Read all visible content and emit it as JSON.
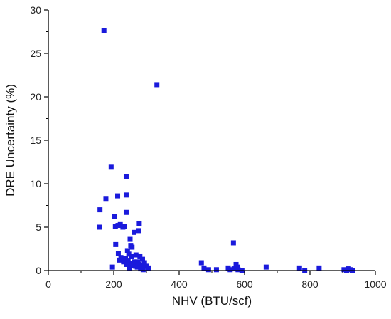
{
  "chart_data": {
    "type": "scatter",
    "xlabel": "NHV (BTU/scf)",
    "ylabel": "DRE Uncertainty (%)",
    "xlim": [
      0,
      1000
    ],
    "ylim": [
      0,
      30
    ],
    "xticks": [
      0,
      200,
      400,
      600,
      800,
      1000
    ],
    "yticks": [
      0,
      5,
      10,
      15,
      20,
      25,
      30
    ],
    "grid": false,
    "marker_color": "#1a1adc",
    "marker": "square",
    "points": [
      [
        170,
        27.6
      ],
      [
        332,
        21.4
      ],
      [
        192,
        11.9
      ],
      [
        238,
        10.8
      ],
      [
        238,
        8.7
      ],
      [
        212,
        8.6
      ],
      [
        176,
        8.3
      ],
      [
        158,
        7.0
      ],
      [
        238,
        6.7
      ],
      [
        202,
        6.2
      ],
      [
        205,
        5.1
      ],
      [
        157,
        5.0
      ],
      [
        220,
        5.3
      ],
      [
        213,
        5.2
      ],
      [
        228,
        5.0
      ],
      [
        232,
        5.1
      ],
      [
        278,
        5.4
      ],
      [
        276,
        4.6
      ],
      [
        262,
        4.4
      ],
      [
        250,
        3.6
      ],
      [
        252,
        2.9
      ],
      [
        256,
        2.7
      ],
      [
        206,
        3.0
      ],
      [
        214,
        2.0
      ],
      [
        222,
        1.5
      ],
      [
        242,
        2.3
      ],
      [
        246,
        1.9
      ],
      [
        254,
        1.6
      ],
      [
        268,
        1.8
      ],
      [
        280,
        1.6
      ],
      [
        288,
        1.3
      ],
      [
        218,
        1.2
      ],
      [
        236,
        1.4
      ],
      [
        244,
        1.1
      ],
      [
        262,
        1.0
      ],
      [
        274,
        1.0
      ],
      [
        294,
        0.9
      ],
      [
        230,
        1.0
      ],
      [
        252,
        0.6
      ],
      [
        266,
        0.5
      ],
      [
        286,
        0.6
      ],
      [
        300,
        0.5
      ],
      [
        196,
        0.4
      ],
      [
        240,
        0.7
      ],
      [
        258,
        0.8
      ],
      [
        272,
        0.4
      ],
      [
        282,
        0.2
      ],
      [
        290,
        0.1
      ],
      [
        306,
        0.3
      ],
      [
        248,
        0.3
      ],
      [
        278,
        0.7
      ],
      [
        468,
        0.9
      ],
      [
        476,
        0.3
      ],
      [
        490,
        0.1
      ],
      [
        514,
        0.1
      ],
      [
        550,
        0.3
      ],
      [
        556,
        0.1
      ],
      [
        566,
        3.2
      ],
      [
        568,
        0.2
      ],
      [
        574,
        0.7
      ],
      [
        578,
        0.4
      ],
      [
        580,
        0.1
      ],
      [
        592,
        0.0
      ],
      [
        666,
        0.4
      ],
      [
        768,
        0.3
      ],
      [
        784,
        0.0
      ],
      [
        828,
        0.3
      ],
      [
        904,
        0.1
      ],
      [
        912,
        0.0
      ],
      [
        918,
        0.2
      ],
      [
        924,
        0.1
      ],
      [
        930,
        0.0
      ]
    ]
  }
}
